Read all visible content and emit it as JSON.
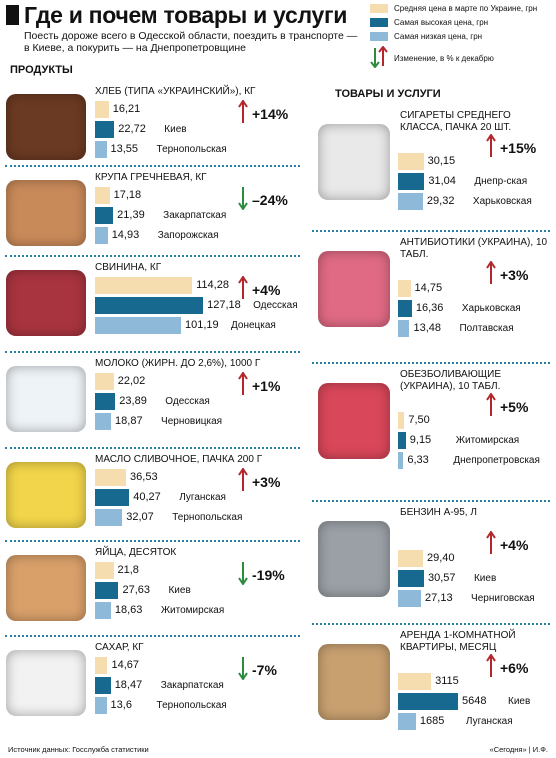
{
  "header": {
    "title": "Где и почем товары и услуги",
    "subtitle": "Поесть дороже всего в Одесской области, поездить в транспорте — в Киеве, а покурить — на Днепропетровщине"
  },
  "legend": [
    {
      "label": "Средняя цена в марте по Украине, грн",
      "color": "#f5ddb0"
    },
    {
      "label": "Самая высокая цена, грн",
      "color": "#17698f"
    },
    {
      "label": "Самая низкая цена, грн",
      "color": "#8fb9d8"
    },
    {
      "label": "Изменение, в % к декабрю"
    }
  ],
  "up_color": "#b3262c",
  "down_color": "#2e8a3c",
  "sections": [
    {
      "heading": "ПРОДУКТЫ",
      "items": [
        {
          "label": "Хлеб (типа «Украинский»), кг",
          "values": [
            16.21,
            22.72,
            13.55
          ],
          "value_labels": [
            "16,21",
            "22,72",
            "13,55"
          ],
          "regions": [
            "Киев",
            "Тернопольская"
          ],
          "change": {
            "value": 14,
            "label": "+14%"
          }
        },
        {
          "label": "Крупа гречневая, кг",
          "values": [
            17.18,
            21.39,
            14.93
          ],
          "value_labels": [
            "17,18",
            "21,39",
            "14,93"
          ],
          "regions": [
            "Закарпатская",
            "Запорожская"
          ],
          "change": {
            "value": -24,
            "label": "–24%"
          }
        },
        {
          "label": "Свинина, кг",
          "values": [
            114.28,
            127.18,
            101.19
          ],
          "value_labels": [
            "114,28",
            "127,18",
            "101,19"
          ],
          "regions": [
            "Одесская",
            "Донецкая"
          ],
          "change": {
            "value": 4,
            "label": "+4%"
          }
        },
        {
          "label": "Молоко (жирн. до 2,6%), 1000 г",
          "values": [
            22.02,
            23.89,
            18.87
          ],
          "value_labels": [
            "22,02",
            "23,89",
            "18,87"
          ],
          "regions": [
            "Одесская",
            "Черновицкая"
          ],
          "change": {
            "value": 1,
            "label": "+1%"
          }
        },
        {
          "label": "Масло сливочное, пачка 200 г",
          "values": [
            36.53,
            40.27,
            32.07
          ],
          "value_labels": [
            "36,53",
            "40,27",
            "32,07"
          ],
          "regions": [
            "Луганская",
            "Тернопольская"
          ],
          "change": {
            "value": 3,
            "label": "+3%"
          }
        },
        {
          "label": "Яйца, десяток",
          "values": [
            21.8,
            27.63,
            18.63
          ],
          "value_labels": [
            "21,8",
            "27,63",
            "18,63"
          ],
          "regions": [
            "Киев",
            "Житомирская"
          ],
          "change": {
            "value": -19,
            "label": "-19%"
          }
        },
        {
          "label": "Сахар, кг",
          "values": [
            14.67,
            18.47,
            13.6
          ],
          "value_labels": [
            "14,67",
            "18,47",
            "13,6"
          ],
          "regions": [
            "Закарпатская",
            "Тернопольская"
          ],
          "change": {
            "value": -7,
            "label": "-7%"
          }
        }
      ]
    },
    {
      "heading": "ТОВАРЫ И УСЛУГИ",
      "items": [
        {
          "label": "Сигареты среднего класса, пачка 20 шт.",
          "values": [
            30.15,
            31.04,
            29.32
          ],
          "value_labels": [
            "30,15",
            "31,04",
            "29,32"
          ],
          "regions": [
            "Днепр-ская",
            "Харьковская"
          ],
          "change": {
            "value": 15,
            "label": "+15%"
          }
        },
        {
          "label": "Антибиотики (Украина), 10 табл.",
          "values": [
            14.75,
            16.36,
            13.48
          ],
          "value_labels": [
            "14,75",
            "16,36",
            "13,48"
          ],
          "regions": [
            "Харьковская",
            "Полтавская"
          ],
          "change": {
            "value": 3,
            "label": "+3%"
          }
        },
        {
          "label": "Обезболивающие (Украина), 10 табл.",
          "values": [
            7.5,
            9.15,
            6.33
          ],
          "value_labels": [
            "7,50",
            "9,15",
            "6,33"
          ],
          "regions": [
            "Житомирская",
            "Днепропетровская"
          ],
          "change": {
            "value": 5,
            "label": "+5%"
          }
        },
        {
          "label": "Бензин А-95, л",
          "values": [
            29.4,
            30.57,
            27.13
          ],
          "value_labels": [
            "29,40",
            "30,57",
            "27,13"
          ],
          "regions": [
            "Киев",
            "Черниговская"
          ],
          "change": {
            "value": 4,
            "label": "+4%"
          }
        },
        {
          "label": "Аренда 1-комнатной квартиры, месяц",
          "values": [
            3115,
            5648,
            1685
          ],
          "value_labels": [
            "3115",
            "5648",
            "1685"
          ],
          "regions": [
            "Киев",
            "Луганская"
          ],
          "change": {
            "value": 6,
            "label": "+6%"
          }
        }
      ]
    }
  ],
  "footer": {
    "source": "Источник данных: Госслужба статистики",
    "credit": "«Сегодня» | И.Ф."
  }
}
